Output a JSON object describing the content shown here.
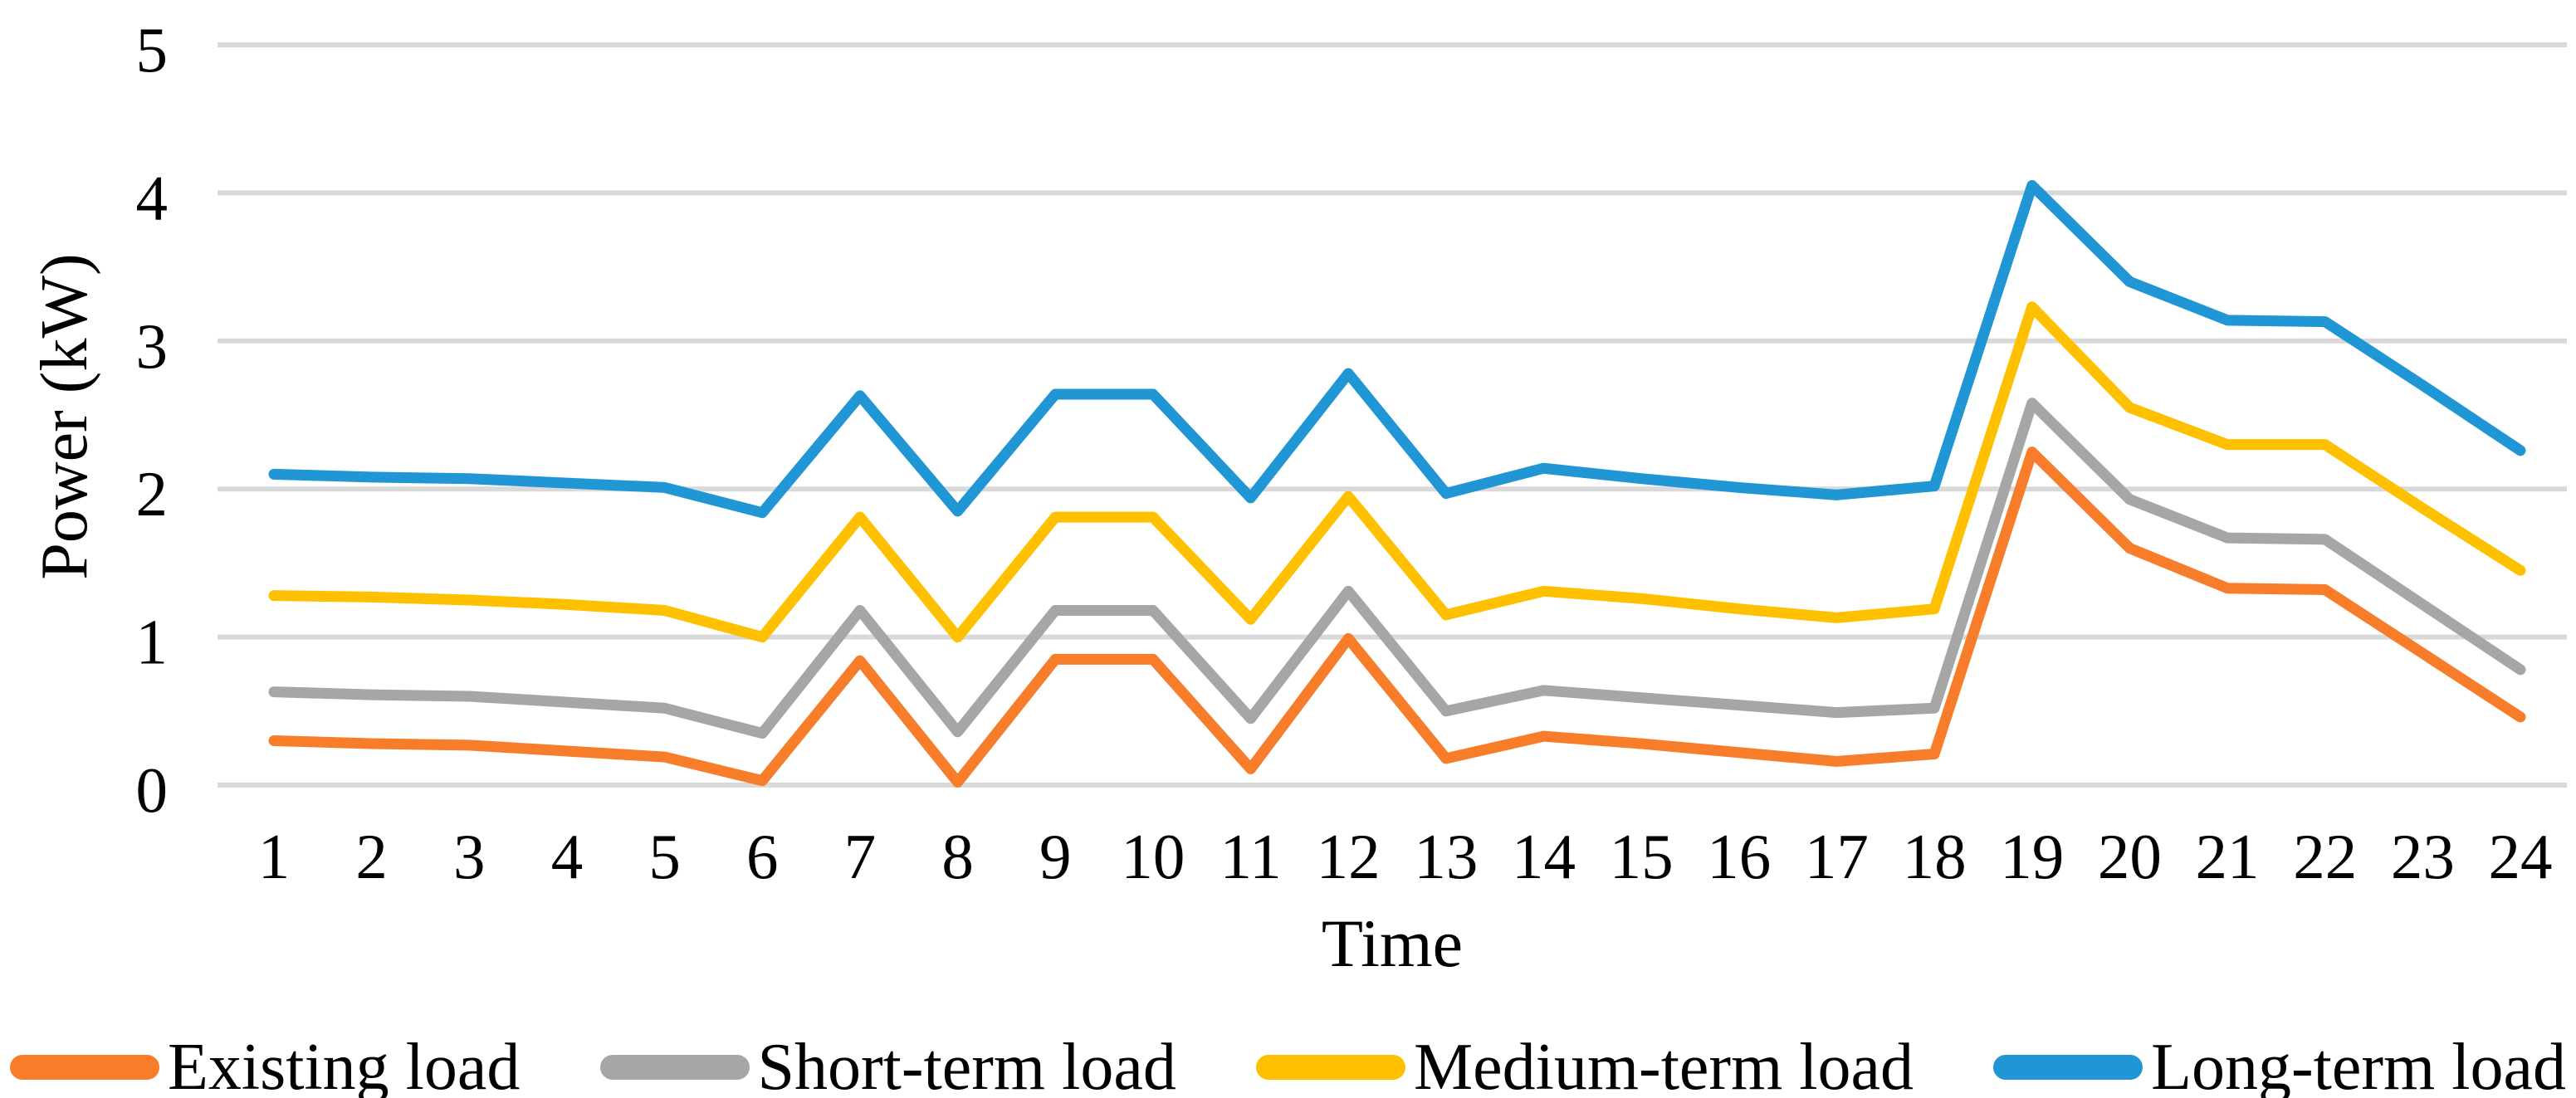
{
  "figure": {
    "background": "#ffffff",
    "text_color": "#000000"
  },
  "chart_data": {
    "type": "line",
    "title": "",
    "xlabel": "Time",
    "ylabel": "Power (kW)",
    "x": [
      1,
      2,
      3,
      4,
      5,
      6,
      7,
      8,
      9,
      10,
      11,
      12,
      13,
      14,
      15,
      16,
      17,
      18,
      19,
      20,
      21,
      22,
      23,
      24
    ],
    "ylim": [
      0,
      5
    ],
    "yticks": [
      0,
      1,
      2,
      3,
      4,
      5
    ],
    "grid": "horizontal",
    "gridline_color": "#D9D9D9",
    "legend_position": "bottom",
    "line_width": 13,
    "series": [
      {
        "name": "Existing load",
        "color": "#F87D2B",
        "values": [
          0.3,
          0.28,
          0.27,
          0.23,
          0.19,
          0.03,
          0.84,
          0.02,
          0.85,
          0.85,
          0.11,
          0.99,
          0.18,
          0.33,
          0.28,
          0.22,
          0.16,
          0.21,
          2.25,
          1.6,
          1.33,
          1.32,
          0.89,
          0.46
        ]
      },
      {
        "name": "Short-term load",
        "color": "#A6A6A6",
        "values": [
          0.63,
          0.61,
          0.6,
          0.56,
          0.52,
          0.35,
          1.18,
          0.36,
          1.18,
          1.18,
          0.45,
          1.31,
          0.5,
          0.64,
          0.59,
          0.54,
          0.49,
          0.52,
          2.58,
          1.93,
          1.67,
          1.66,
          1.22,
          0.78
        ]
      },
      {
        "name": "Medium-term load",
        "color": "#FFC000",
        "values": [
          1.28,
          1.27,
          1.25,
          1.22,
          1.18,
          1.0,
          1.81,
          1.0,
          1.81,
          1.81,
          1.12,
          1.95,
          1.15,
          1.31,
          1.26,
          1.19,
          1.13,
          1.19,
          3.23,
          2.55,
          2.3,
          2.3,
          1.87,
          1.45
        ]
      },
      {
        "name": "Long-term load",
        "color": "#2196D5",
        "values": [
          2.1,
          2.08,
          2.07,
          2.04,
          2.01,
          1.84,
          2.63,
          1.85,
          2.64,
          2.64,
          1.94,
          2.78,
          1.97,
          2.14,
          2.07,
          2.01,
          1.96,
          2.02,
          4.05,
          3.4,
          3.14,
          3.13,
          2.7,
          2.26
        ]
      }
    ]
  }
}
